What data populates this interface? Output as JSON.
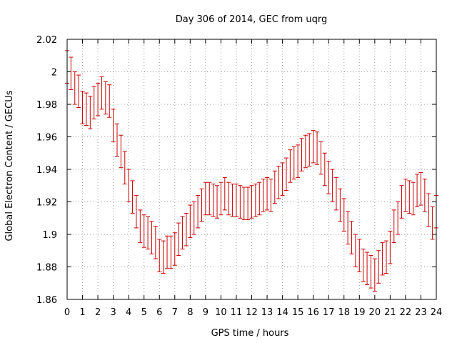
{
  "chart_data": {
    "type": "scatter",
    "title": "Day 306 of 2014, GEC from uqrg",
    "xlabel": "GPS time / hours",
    "ylabel": "Global Electron Content / GECUs",
    "xlim": [
      0,
      24
    ],
    "ylim": [
      1.86,
      2.02
    ],
    "xticks": [
      0,
      1,
      2,
      3,
      4,
      5,
      6,
      7,
      8,
      9,
      10,
      11,
      12,
      13,
      14,
      15,
      16,
      17,
      18,
      19,
      20,
      21,
      22,
      23,
      24
    ],
    "yticks": [
      1.86,
      1.88,
      1.9,
      1.92,
      1.94,
      1.96,
      1.98,
      2,
      2.02
    ],
    "ytick_labels": [
      "1.86",
      "1.88",
      "1.9",
      "1.92",
      "1.94",
      "1.96",
      "1.98",
      "2",
      "2.02"
    ],
    "grid": true,
    "color": "#cc0000",
    "error": 0.01,
    "series": [
      {
        "name": "GEC",
        "x": [
          0,
          0.25,
          0.5,
          0.75,
          1,
          1.25,
          1.5,
          1.75,
          2,
          2.25,
          2.5,
          2.75,
          3,
          3.25,
          3.5,
          3.75,
          4,
          4.25,
          4.5,
          4.75,
          5,
          5.25,
          5.5,
          5.75,
          6,
          6.25,
          6.5,
          6.75,
          7,
          7.25,
          7.5,
          7.75,
          8,
          8.25,
          8.5,
          8.75,
          9,
          9.25,
          9.5,
          9.75,
          10,
          10.25,
          10.5,
          10.75,
          11,
          11.25,
          11.5,
          11.75,
          12,
          12.25,
          12.5,
          12.75,
          13,
          13.25,
          13.5,
          13.75,
          14,
          14.25,
          14.5,
          14.75,
          15,
          15.25,
          15.5,
          15.75,
          16,
          16.25,
          16.5,
          16.75,
          17,
          17.25,
          17.5,
          17.75,
          18,
          18.25,
          18.5,
          18.75,
          19,
          19.25,
          19.5,
          19.75,
          20,
          20.25,
          20.5,
          20.75,
          21,
          21.25,
          21.5,
          21.75,
          22,
          22.25,
          22.5,
          22.75,
          23,
          23.25,
          23.5,
          23.75,
          24
        ],
        "y": [
          2.003,
          1.999,
          1.99,
          1.988,
          1.978,
          1.977,
          1.975,
          1.981,
          1.983,
          1.987,
          1.984,
          1.982,
          1.967,
          1.958,
          1.951,
          1.941,
          1.93,
          1.923,
          1.914,
          1.905,
          1.902,
          1.901,
          1.898,
          1.895,
          1.887,
          1.886,
          1.889,
          1.889,
          1.891,
          1.897,
          1.901,
          1.903,
          1.908,
          1.91,
          1.914,
          1.918,
          1.922,
          1.922,
          1.921,
          1.92,
          1.922,
          1.925,
          1.922,
          1.921,
          1.921,
          1.92,
          1.919,
          1.919,
          1.92,
          1.921,
          1.922,
          1.924,
          1.925,
          1.924,
          1.929,
          1.932,
          1.934,
          1.937,
          1.942,
          1.944,
          1.945,
          1.949,
          1.951,
          1.952,
          1.954,
          1.953,
          1.947,
          1.94,
          1.935,
          1.93,
          1.925,
          1.918,
          1.912,
          1.904,
          1.898,
          1.89,
          1.887,
          1.881,
          1.879,
          1.877,
          1.875,
          1.88,
          1.885,
          1.886,
          1.892,
          1.905,
          1.91,
          1.92,
          1.924,
          1.923,
          1.922,
          1.927,
          1.928,
          1.924,
          1.915,
          1.907,
          1.914
        ]
      }
    ]
  }
}
